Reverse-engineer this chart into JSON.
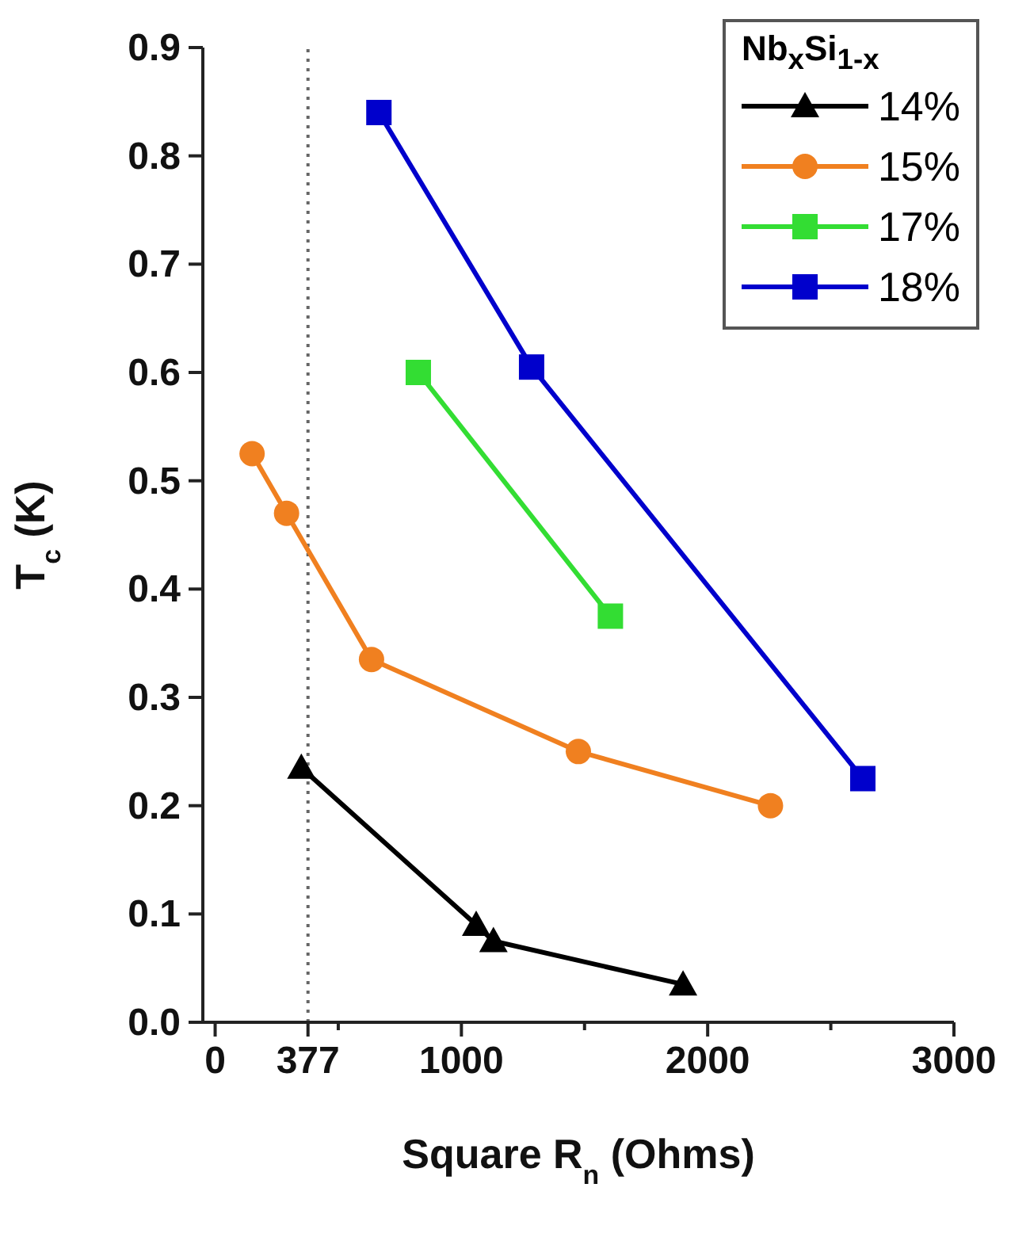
{
  "chart_data": {
    "type": "line",
    "xlabel": "Square R$_{n}$ (Ohms)",
    "ylabel": "T$_{c}$ (K)",
    "legend_title": "Nb$_{x}$Si$_{1-x}$",
    "legend": "top right",
    "xlim": [
      -50,
      3000
    ],
    "xticks": [
      0,
      377,
      {
        "value": 500,
        "label": null
      },
      1000,
      {
        "value": 1500,
        "label": null
      },
      2000,
      {
        "value": 2500,
        "label": null
      },
      3000
    ],
    "ylim": [
      0,
      0.9
    ],
    "yticks": [
      {
        "value": 0,
        "label": "0.0"
      },
      {
        "value": 0.1,
        "label": "0.1"
      },
      {
        "value": 0.2,
        "label": "0.2"
      },
      {
        "value": 0.3,
        "label": "0.3"
      },
      {
        "value": 0.4,
        "label": "0.4"
      },
      {
        "value": 0.5,
        "label": "0.5"
      },
      {
        "value": 0.6,
        "label": "0.6"
      },
      {
        "value": 0.7,
        "label": "0.7"
      },
      {
        "value": 0.8,
        "label": "0.8"
      },
      {
        "value": 0.9,
        "label": "0.9"
      }
    ],
    "ref_lines": [
      {
        "axis": "x",
        "value": 377,
        "line_style": "dotted",
        "color": "#666666"
      }
    ],
    "series": [
      {
        "name": "14%",
        "color": "#000000",
        "marker": "triangle",
        "x": [
          350,
          1060,
          1130,
          1900
        ],
        "values": [
          0.235,
          0.09,
          0.075,
          0.035
        ]
      },
      {
        "name": "15%",
        "color": "#f08020",
        "marker": "circle",
        "x": [
          150,
          290,
          635,
          1475,
          2255
        ],
        "values": [
          0.525,
          0.47,
          0.335,
          0.25,
          0.2
        ]
      },
      {
        "name": "17%",
        "color": "#33dd33",
        "marker": "square",
        "x": [
          825,
          1605
        ],
        "values": [
          0.6,
          0.375
        ]
      },
      {
        "name": "18%",
        "color": "#0000cc",
        "marker": "square",
        "x": [
          665,
          1285,
          2630
        ],
        "values": [
          0.84,
          0.605,
          0.225
        ]
      }
    ]
  }
}
